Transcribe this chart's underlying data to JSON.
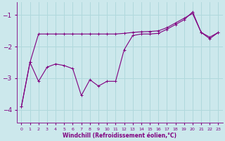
{
  "xlabel": "Windchill (Refroidissement éolien,°C)",
  "bg_color": "#cce8ec",
  "line_color": "#800080",
  "grid_color": "#b0d8dc",
  "xlim": [
    -0.5,
    23.5
  ],
  "ylim": [
    -4.4,
    -0.6
  ],
  "yticks": [
    -4,
    -3,
    -2,
    -1
  ],
  "xticks": [
    0,
    1,
    2,
    3,
    4,
    5,
    6,
    7,
    8,
    9,
    10,
    11,
    12,
    13,
    14,
    15,
    16,
    17,
    18,
    19,
    20,
    21,
    22,
    23
  ],
  "series1_x": [
    0,
    1,
    2,
    3,
    4,
    5,
    6,
    7,
    8,
    9,
    10,
    11,
    12,
    13,
    14,
    15,
    16,
    17,
    18,
    19,
    20,
    21,
    22,
    23
  ],
  "series1_y": [
    -3.9,
    -2.5,
    -3.1,
    -2.65,
    -2.55,
    -2.6,
    -2.7,
    -3.55,
    -3.05,
    -3.25,
    -3.1,
    -3.1,
    -2.1,
    -1.65,
    -1.6,
    -1.6,
    -1.58,
    -1.45,
    -1.3,
    -1.15,
    -0.9,
    -1.55,
    -1.75,
    -1.55
  ],
  "series2_x": [
    0,
    1,
    2,
    3,
    4,
    5,
    6,
    7,
    8,
    9,
    10,
    11,
    12,
    13,
    14,
    15,
    16,
    17,
    18,
    19,
    20,
    21,
    22,
    23
  ],
  "series2_y": [
    -3.9,
    -2.5,
    -1.6,
    -1.6,
    -1.6,
    -1.6,
    -1.6,
    -1.6,
    -1.6,
    -1.6,
    -1.6,
    -1.6,
    -1.58,
    -1.55,
    -1.53,
    -1.52,
    -1.5,
    -1.4,
    -1.25,
    -1.1,
    -0.95,
    -1.55,
    -1.7,
    -1.55
  ]
}
